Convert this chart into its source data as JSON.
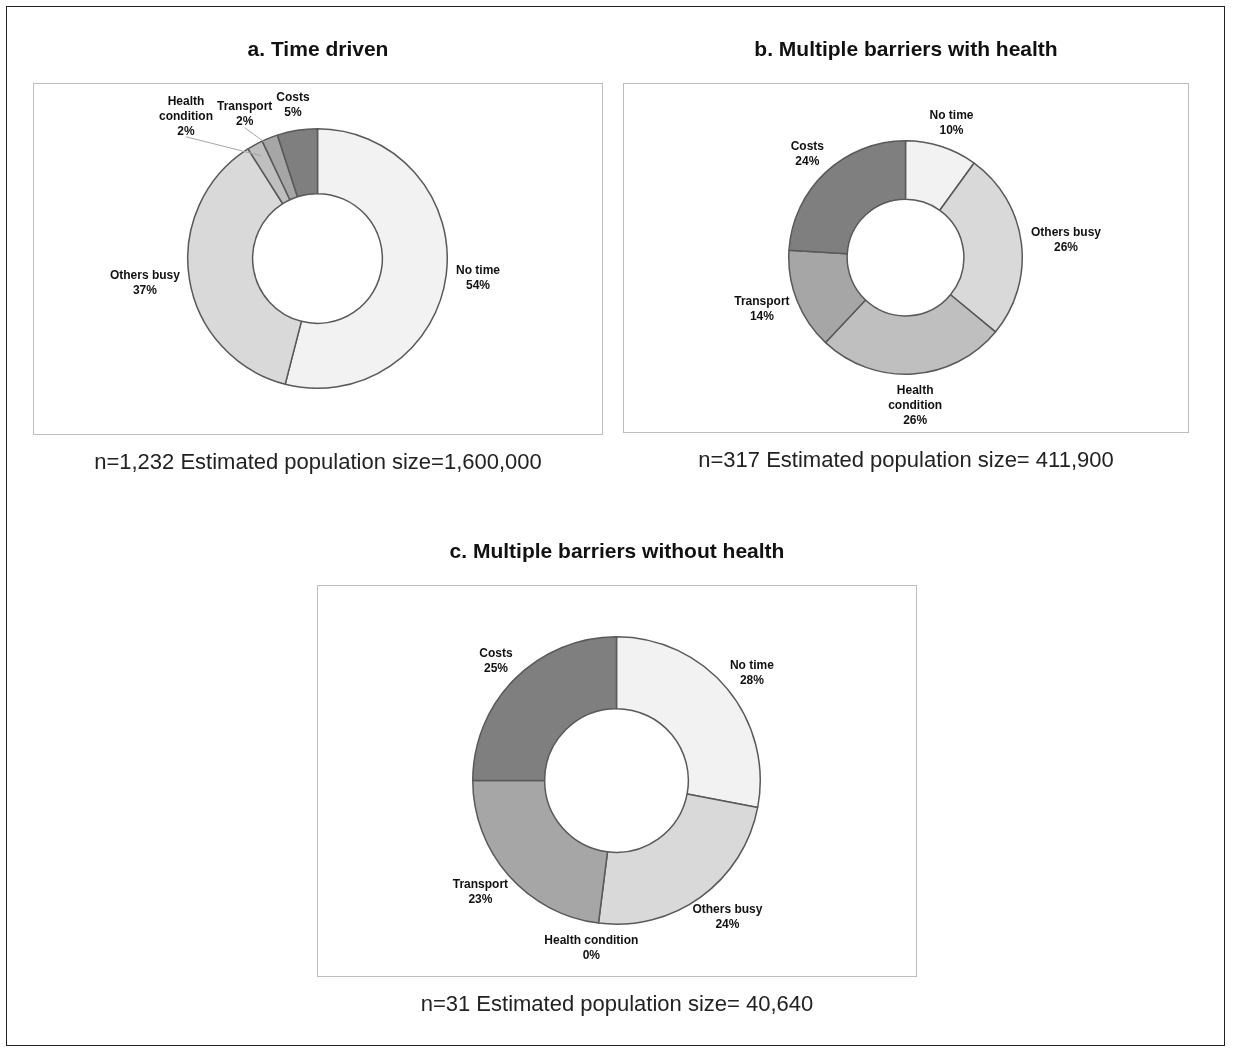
{
  "chart_data": [
    {
      "type": "donut",
      "title": "a. Time driven",
      "categories": [
        "No time",
        "Others busy",
        "Health condition",
        "Transport",
        "Costs"
      ],
      "values": [
        54,
        37,
        2,
        2,
        5
      ],
      "value_labels": [
        "54%",
        "37%",
        "2%",
        "2%",
        "5%"
      ],
      "colors": [
        "#f2f2f2",
        "#d9d9d9",
        "#bfbfbf",
        "#a6a6a6",
        "#7f7f7f"
      ],
      "annotations": [
        "n=1,232 Estimated population size=1,600,000"
      ]
    },
    {
      "type": "donut",
      "title": "b. Multiple barriers with health",
      "categories": [
        "No time",
        "Others busy",
        "Health condition",
        "Transport",
        "Costs"
      ],
      "values": [
        10,
        26,
        26,
        14,
        24
      ],
      "value_labels": [
        "10%",
        "26%",
        "26%",
        "14%",
        "24%"
      ],
      "colors": [
        "#f2f2f2",
        "#d9d9d9",
        "#bfbfbf",
        "#a6a6a6",
        "#7f7f7f"
      ],
      "annotations": [
        "n=317 Estimated population size= 411,900"
      ]
    },
    {
      "type": "donut",
      "title": "c. Multiple barriers without health",
      "categories": [
        "No time",
        "Others busy",
        "Health condition",
        "Transport",
        "Costs"
      ],
      "values": [
        28,
        24,
        0,
        23,
        25
      ],
      "value_labels": [
        "28%",
        "24%",
        "0%",
        "23%",
        "25%"
      ],
      "colors": [
        "#f2f2f2",
        "#d9d9d9",
        "#bfbfbf",
        "#a6a6a6",
        "#7f7f7f"
      ],
      "annotations": [
        "n=31 Estimated population size= 40,640"
      ]
    }
  ]
}
